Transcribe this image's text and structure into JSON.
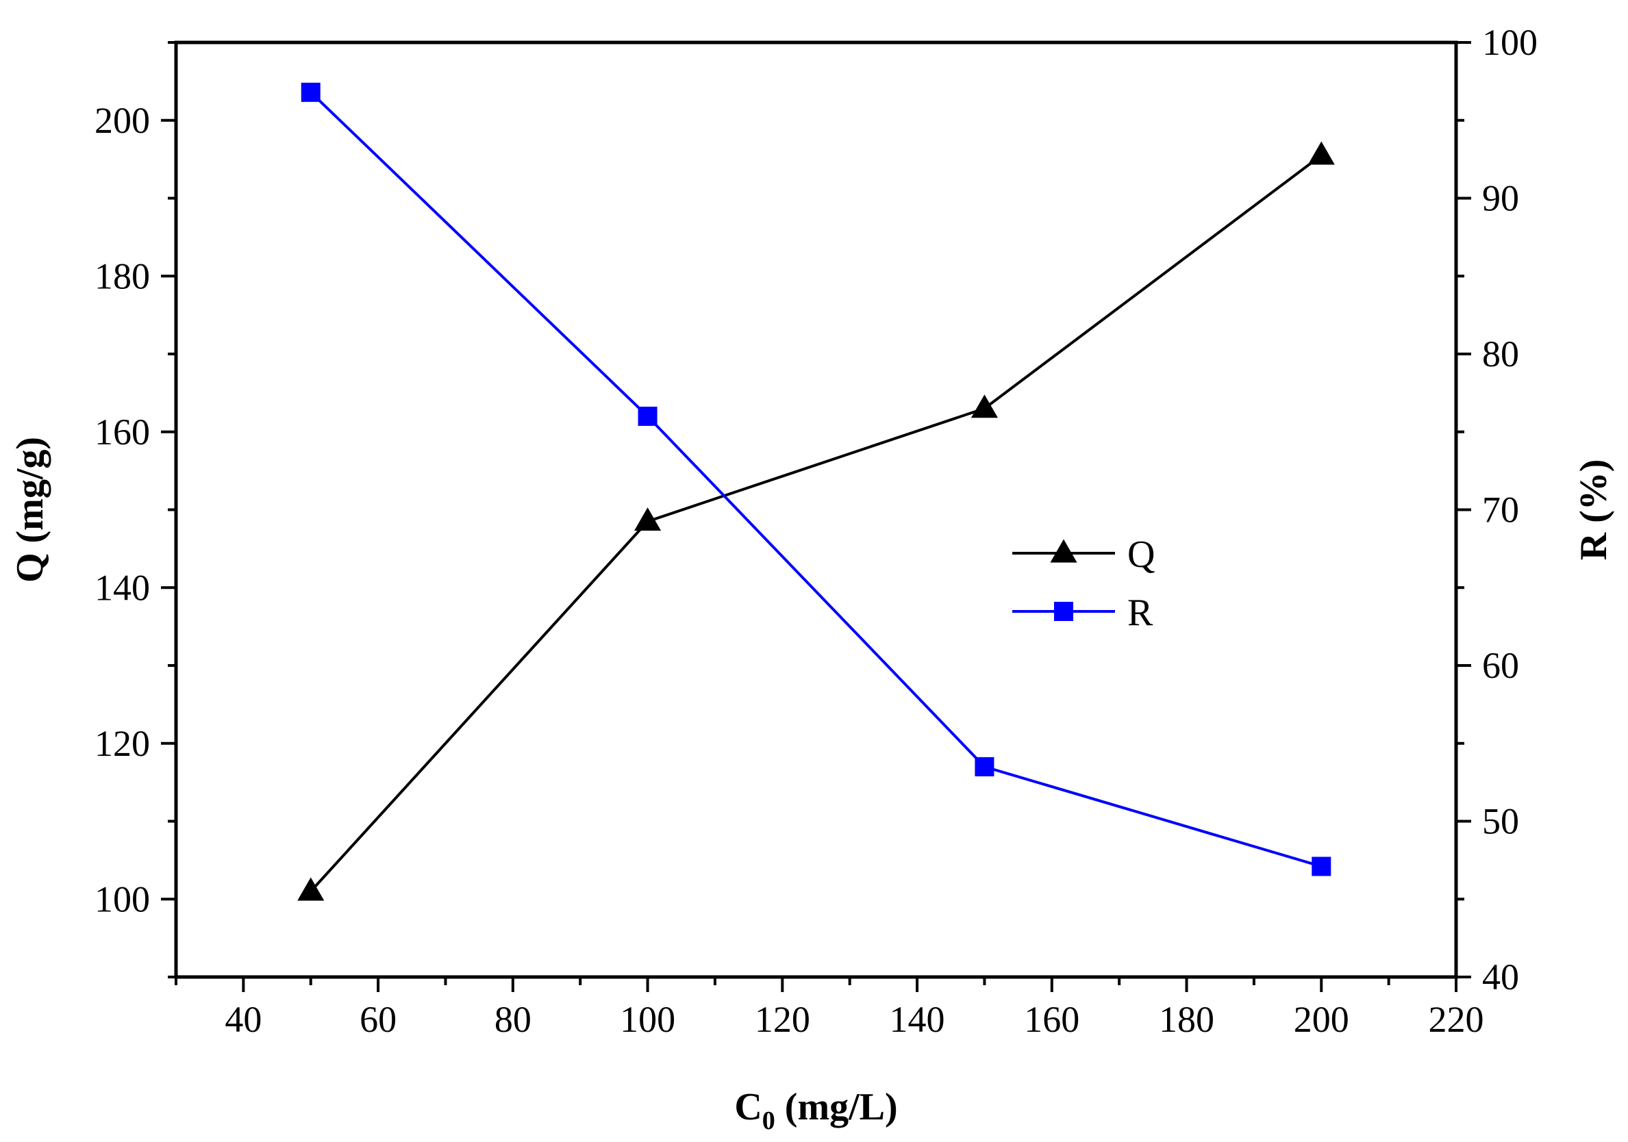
{
  "chart_data": {
    "type": "line",
    "title": "",
    "xlabel_main": "C",
    "xlabel_sub": "0",
    "xlabel_unit": " (mg/L)",
    "ylabel_left": "Q (mg/g)",
    "ylabel_right": "R (%)",
    "xlim": [
      30,
      220
    ],
    "ylim_left": [
      90,
      210
    ],
    "ylim_right": [
      40,
      100
    ],
    "x_ticks": [
      40,
      60,
      80,
      100,
      120,
      140,
      160,
      180,
      200,
      220
    ],
    "y_left_ticks": [
      100,
      120,
      140,
      160,
      180,
      200
    ],
    "y_right_ticks": [
      40,
      50,
      60,
      70,
      80,
      90,
      100
    ],
    "legend_position": "center-right",
    "series": [
      {
        "name": "Q",
        "axis": "left",
        "color": "#000000",
        "marker": "triangle",
        "x": [
          50,
          100,
          150,
          200
        ],
        "values": [
          101,
          148.5,
          163,
          195.5
        ]
      },
      {
        "name": "R",
        "axis": "right",
        "color": "#0000ff",
        "marker": "square",
        "x": [
          50,
          100,
          150,
          200
        ],
        "values": [
          96.8,
          76,
          53.5,
          47.1
        ]
      }
    ]
  }
}
